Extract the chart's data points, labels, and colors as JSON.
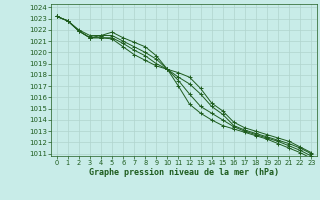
{
  "title": "Graphe pression niveau de la mer (hPa)",
  "bg_color": "#c8ece8",
  "grid_color": "#b0d4ce",
  "line_color": "#1e5c1e",
  "lines": [
    [
      1023.2,
      1022.8,
      1021.9,
      1021.3,
      1021.3,
      1021.2,
      1020.5,
      1019.8,
      1019.3,
      1018.8,
      1018.5,
      1018.2,
      1017.8,
      1016.8,
      1015.5,
      1014.8,
      1013.8,
      1013.3,
      1013.0,
      1012.7,
      1012.4,
      1012.1,
      1011.6,
      1011.1
    ],
    [
      1023.2,
      1022.8,
      1021.9,
      1021.3,
      1021.3,
      1021.3,
      1020.8,
      1020.2,
      1019.7,
      1019.0,
      1018.5,
      1017.8,
      1017.2,
      1016.3,
      1015.2,
      1014.5,
      1013.5,
      1013.1,
      1012.8,
      1012.5,
      1012.2,
      1011.9,
      1011.5,
      1011.0
    ],
    [
      1023.2,
      1022.8,
      1022.0,
      1021.5,
      1021.5,
      1021.5,
      1021.0,
      1020.5,
      1020.0,
      1019.4,
      1018.5,
      1017.5,
      1016.3,
      1015.2,
      1014.6,
      1014.0,
      1013.4,
      1013.0,
      1012.7,
      1012.4,
      1012.1,
      1011.7,
      1011.3,
      1010.8
    ],
    [
      1023.2,
      1022.8,
      1021.9,
      1021.3,
      1021.5,
      1021.8,
      1021.3,
      1020.9,
      1020.5,
      1019.7,
      1018.5,
      1017.0,
      1015.4,
      1014.6,
      1014.0,
      1013.5,
      1013.2,
      1012.9,
      1012.6,
      1012.3,
      1011.9,
      1011.5,
      1011.1,
      1010.6
    ]
  ],
  "x_ticks": [
    0,
    1,
    2,
    3,
    4,
    5,
    6,
    7,
    8,
    9,
    10,
    11,
    12,
    13,
    14,
    15,
    16,
    17,
    18,
    19,
    20,
    21,
    22,
    23
  ],
  "y_min": 1011,
  "y_max": 1024,
  "y_ticks": [
    1011,
    1012,
    1013,
    1014,
    1015,
    1016,
    1017,
    1018,
    1019,
    1020,
    1021,
    1022,
    1023,
    1024
  ]
}
